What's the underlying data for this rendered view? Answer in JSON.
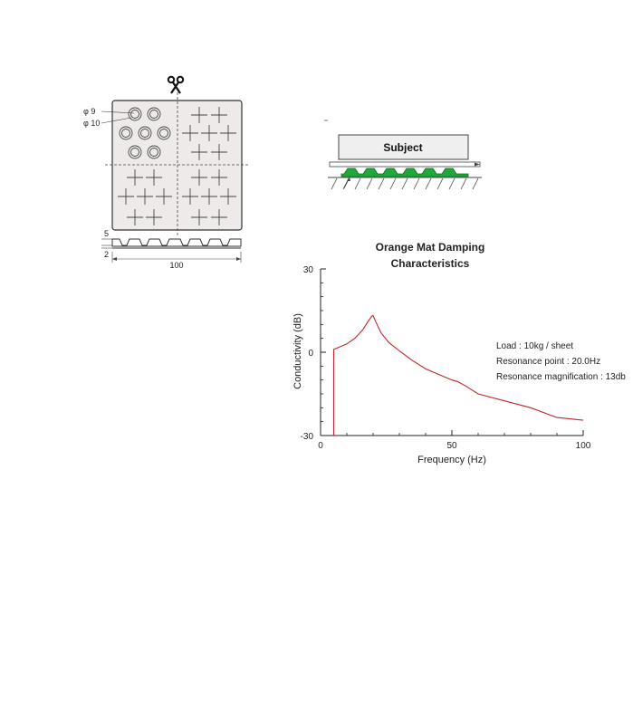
{
  "mat_diagram": {
    "dim_phi9": "φ 9",
    "dim_phi10": "φ 10",
    "dim_thickness_total": "5",
    "dim_thickness_base": "2",
    "dim_width": "100",
    "icons": [
      "scissors-icon"
    ]
  },
  "setup_diagram": {
    "subject_label": "Subject",
    "mat_color": "#1fa83b"
  },
  "chart_data": {
    "type": "line",
    "title_line1": "Orange Mat Damping",
    "title_line2": "Characteristics",
    "xlabel": "Frequency (Hz)",
    "ylabel": "Conductivity (dB)",
    "xlim": [
      0,
      100
    ],
    "ylim": [
      -30,
      30
    ],
    "xticks": [
      "0",
      "50",
      "100"
    ],
    "yticks": [
      "30",
      "0",
      "-30"
    ],
    "line_color": "#c0262d",
    "series": [
      {
        "x": [
          5,
          5,
          7,
          10,
          13,
          16,
          18,
          19.5,
          20,
          21,
          23,
          26,
          30,
          35,
          40,
          45,
          50,
          52,
          55,
          60,
          70,
          80,
          90,
          95,
          100
        ],
        "y": [
          -30,
          1,
          1.8,
          3,
          5,
          8,
          11,
          13,
          13.2,
          11,
          7,
          3.5,
          0.5,
          -3,
          -6,
          -8,
          -10,
          -10.5,
          -12,
          -15,
          -17.5,
          -20,
          -23.5,
          -24,
          -24.5
        ]
      }
    ],
    "annotations": [
      "Load : 10kg / sheet",
      "Resonance point : 20.0Hz",
      "Resonance magnification : 13db"
    ]
  }
}
